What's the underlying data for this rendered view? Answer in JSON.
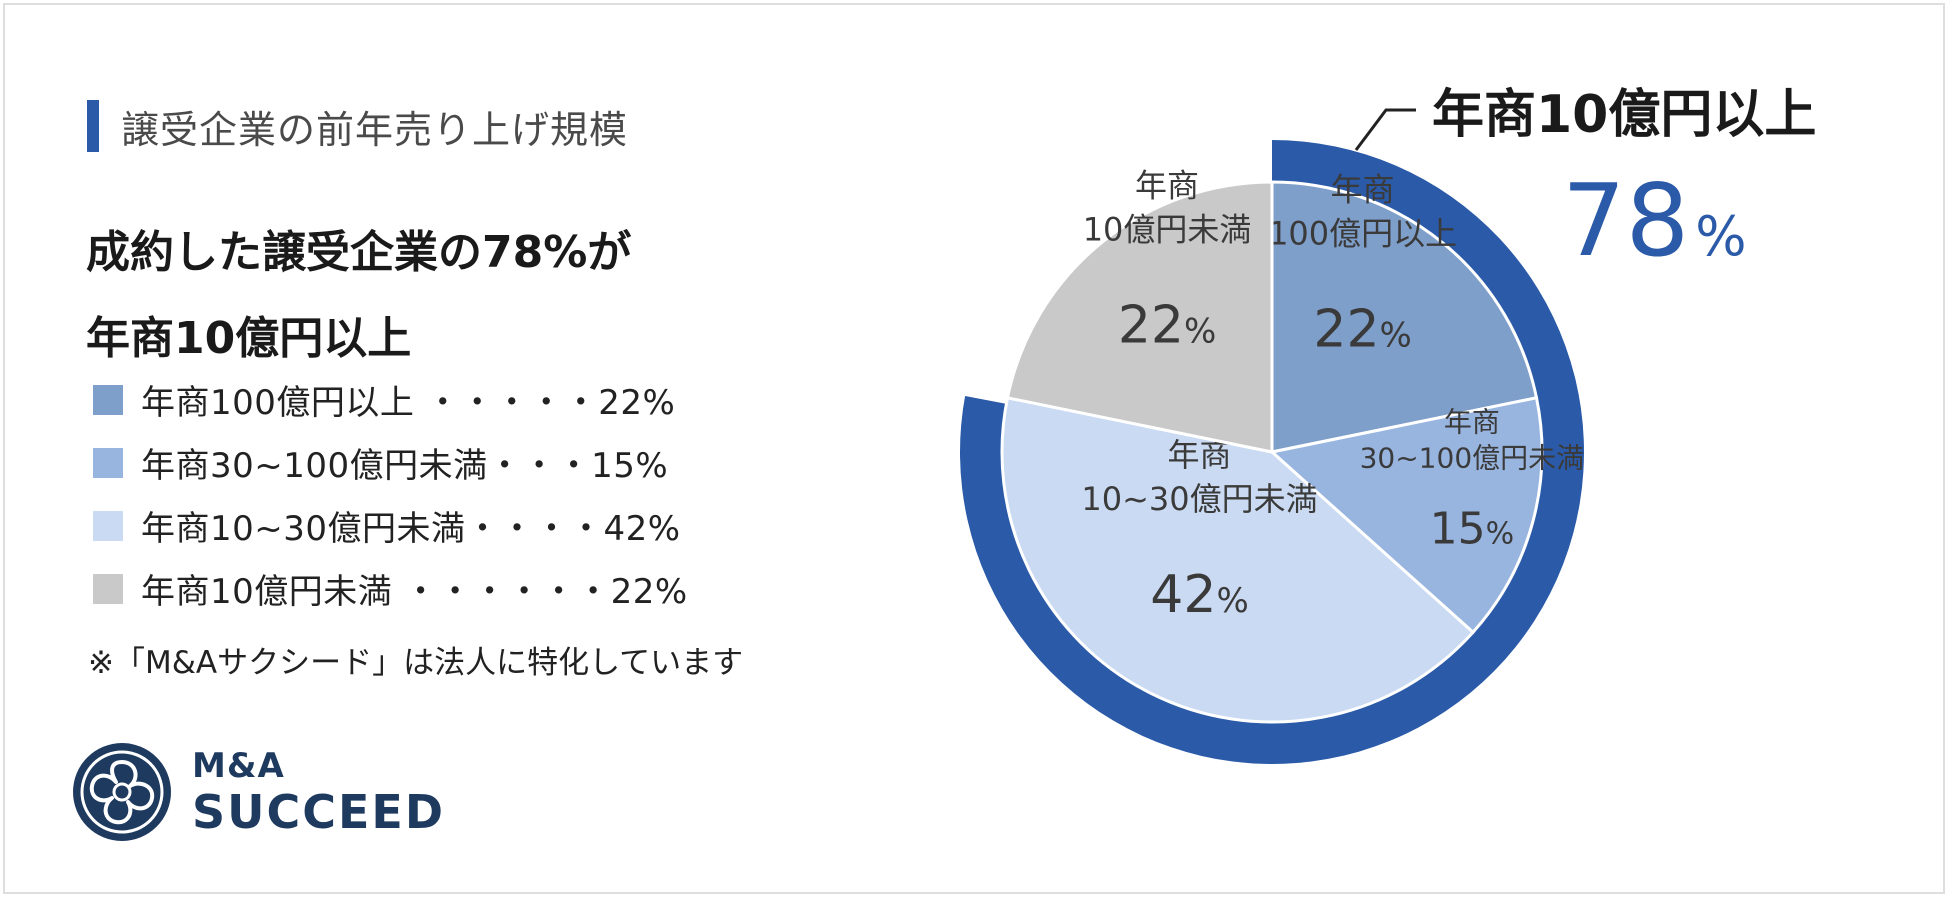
{
  "section": {
    "title": "譲受企業の前年売り上げ規模"
  },
  "headline": {
    "line1": "成約した譲受企業の78%が",
    "line2": "年商10億円以上"
  },
  "legend": [
    {
      "text": "年商100億円以上 ・・・・・22%",
      "color": "#7f9fcb"
    },
    {
      "text": "年商30~100億円未満・・・15%",
      "color": "#98b5e0"
    },
    {
      "text": "年商10~30億円未満・・・・42%",
      "color": "#c9daf2"
    },
    {
      "text": "年商10億円未満 ・・・・・・22%",
      "color": "#c9c9c9"
    }
  ],
  "note": "※「M&Aサクシード」は法人に特化しています",
  "logo": {
    "line1": "M&A",
    "line2": "SUCCEED"
  },
  "callout": {
    "title": "年商10億円以上",
    "value": "78",
    "unit": "%"
  },
  "chart_data": {
    "type": "pie",
    "slices": [
      {
        "label_lines": [
          "年商",
          "100億円以上"
        ],
        "value": 22,
        "value_label": "22",
        "unit": "%",
        "color": "#7f9fcb"
      },
      {
        "label_lines": [
          "年商",
          "30~100億円未満"
        ],
        "value": 15,
        "value_label": "15",
        "unit": "%",
        "color": "#98b5e0"
      },
      {
        "label_lines": [
          "年商",
          "10~30億円未満"
        ],
        "value": 42,
        "value_label": "42",
        "unit": "%",
        "color": "#c9daf2"
      },
      {
        "label_lines": [
          "年商",
          "10億円未満"
        ],
        "value": 22,
        "value_label": "22",
        "unit": "%",
        "color": "#c9c9c9"
      }
    ],
    "highlight_ring": {
      "covers_first_n_slices": 3,
      "value": 78,
      "color": "#2a5aa8"
    }
  }
}
